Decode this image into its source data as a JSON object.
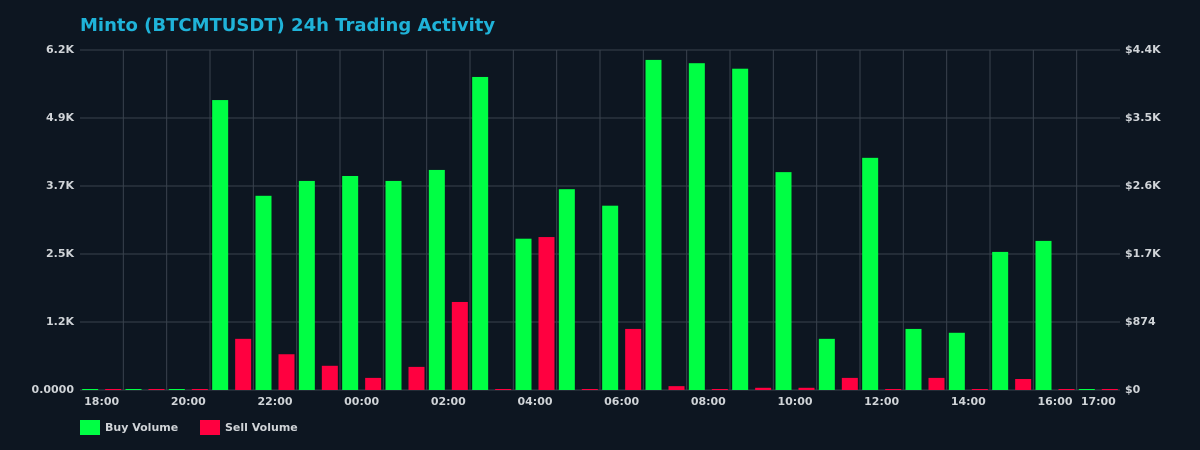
{
  "chart_data": {
    "type": "bar",
    "title": "Minto (BTCMTUSDT) 24h Trading Activity",
    "categories": [
      "18:00",
      null,
      "20:00",
      null,
      "22:00",
      null,
      "00:00",
      null,
      "02:00",
      null,
      "04:00",
      null,
      "06:00",
      null,
      "08:00",
      null,
      "10:00",
      null,
      "12:00",
      null,
      "14:00",
      null,
      "16:00",
      "17:00"
    ],
    "series": [
      {
        "name": "Buy Volume",
        "color": "#00ff44",
        "values": [
          10,
          10,
          10,
          5270,
          3530,
          3800,
          3890,
          3800,
          4000,
          5690,
          2750,
          3650,
          3350,
          6000,
          5940,
          5840,
          3960,
          930,
          4220,
          1110,
          1040,
          2510,
          2710,
          10
        ]
      },
      {
        "name": "Sell Volume",
        "color": "#ff0040",
        "values": [
          5,
          5,
          5,
          930,
          650,
          440,
          220,
          420,
          1600,
          5,
          2780,
          0,
          1110,
          70,
          0,
          40,
          40,
          220,
          5,
          220,
          0,
          200,
          0,
          0
        ]
      }
    ],
    "ylim": [
      0,
      6180
    ],
    "yticks": [
      {
        "value": 0,
        "label": "0.0000"
      },
      {
        "value": 1236,
        "label": "1.2K"
      },
      {
        "value": 2472,
        "label": "2.5K"
      },
      {
        "value": 3708,
        "label": "3.7K"
      },
      {
        "value": 4944,
        "label": "4.9K"
      },
      {
        "value": 6180,
        "label": "6.2K"
      }
    ],
    "y2lim": [
      0,
      4370
    ],
    "y2ticks": [
      {
        "value": 0,
        "label": "$0"
      },
      {
        "value": 874,
        "label": "$874"
      },
      {
        "value": 1748,
        "label": "$1.7K"
      },
      {
        "value": 2622,
        "label": "$2.6K"
      },
      {
        "value": 3496,
        "label": "$3.5K"
      },
      {
        "value": 4370,
        "label": "$4.4K"
      }
    ],
    "grid": true,
    "legend": "bottom-left"
  }
}
